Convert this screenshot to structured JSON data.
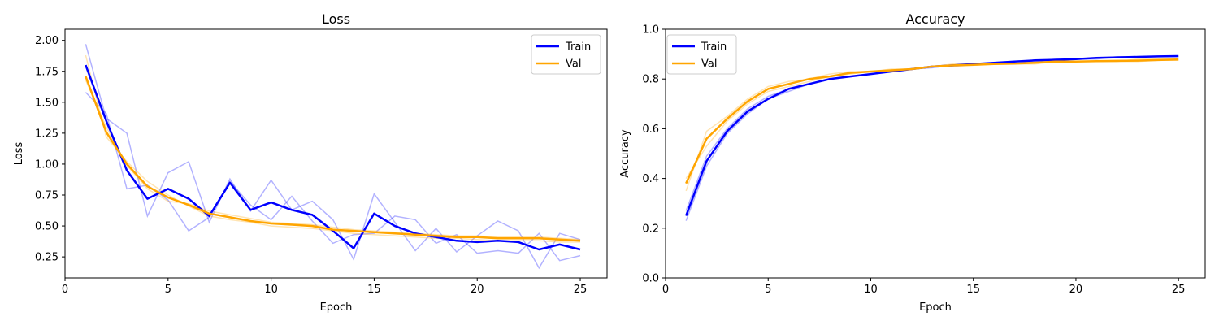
{
  "chart_data": [
    {
      "type": "line",
      "title": "Loss",
      "xlabel": "Epoch",
      "ylabel": "Loss",
      "xlim": [
        0,
        26.3
      ],
      "ylim": [
        0.08,
        2.09
      ],
      "xticks": [
        0,
        5,
        10,
        15,
        20,
        25
      ],
      "yticks": [
        0.25,
        0.5,
        0.75,
        1.0,
        1.25,
        1.5,
        1.75,
        2.0
      ],
      "ytick_decimals": 2,
      "legend": "top-right",
      "x": [
        1,
        2,
        3,
        4,
        5,
        6,
        7,
        8,
        9,
        10,
        11,
        12,
        13,
        14,
        15,
        16,
        17,
        18,
        19,
        20,
        21,
        22,
        23,
        24,
        25
      ],
      "series": [
        {
          "name": "Train",
          "color": "#0000ff",
          "values": [
            1.8,
            1.35,
            0.95,
            0.72,
            0.8,
            0.72,
            0.58,
            0.85,
            0.63,
            0.69,
            0.63,
            0.59,
            0.46,
            0.32,
            0.6,
            0.5,
            0.44,
            0.41,
            0.38,
            0.37,
            0.38,
            0.37,
            0.31,
            0.35,
            0.31
          ]
        },
        {
          "name": "Val",
          "color": "#ffa500",
          "values": [
            1.71,
            1.26,
            1.0,
            0.82,
            0.73,
            0.67,
            0.6,
            0.57,
            0.54,
            0.52,
            0.51,
            0.5,
            0.47,
            0.46,
            0.45,
            0.44,
            0.43,
            0.42,
            0.41,
            0.41,
            0.4,
            0.4,
            0.4,
            0.39,
            0.38
          ]
        }
      ],
      "faint_series": [
        {
          "color": "#0000ff",
          "values": [
            1.97,
            1.37,
            1.25,
            0.58,
            0.93,
            1.02,
            0.53,
            0.88,
            0.62,
            0.87,
            0.63,
            0.7,
            0.55,
            0.23,
            0.76,
            0.53,
            0.3,
            0.48,
            0.29,
            0.42,
            0.54,
            0.46,
            0.16,
            0.44,
            0.39
          ]
        },
        {
          "color": "#0000ff",
          "values": [
            1.58,
            1.41,
            0.8,
            0.83,
            0.71,
            0.46,
            0.57,
            0.86,
            0.67,
            0.55,
            0.74,
            0.54,
            0.36,
            0.43,
            0.44,
            0.58,
            0.55,
            0.36,
            0.43,
            0.28,
            0.3,
            0.28,
            0.44,
            0.22,
            0.26
          ]
        },
        {
          "color": "#ffa500",
          "values": [
            1.88,
            1.22,
            1.02,
            0.86,
            0.75,
            0.66,
            0.58,
            0.55,
            0.53,
            0.5,
            0.49,
            0.48,
            0.46,
            0.44,
            0.43,
            0.42,
            0.41,
            0.4,
            0.4,
            0.39,
            0.38,
            0.38,
            0.38,
            0.37,
            0.37
          ]
        },
        {
          "color": "#ffa500",
          "values": [
            1.68,
            1.3,
            0.99,
            0.8,
            0.7,
            0.68,
            0.62,
            0.59,
            0.56,
            0.53,
            0.52,
            0.51,
            0.49,
            0.47,
            0.46,
            0.45,
            0.44,
            0.43,
            0.42,
            0.42,
            0.41,
            0.41,
            0.41,
            0.4,
            0.39
          ]
        }
      ]
    },
    {
      "type": "line",
      "title": "Accuracy",
      "xlabel": "Epoch",
      "ylabel": "Accuracy",
      "xlim": [
        0,
        26.3
      ],
      "ylim": [
        0.0,
        1.0
      ],
      "xticks": [
        0,
        5,
        10,
        15,
        20,
        25
      ],
      "yticks": [
        0.0,
        0.2,
        0.4,
        0.6,
        0.8,
        1.0
      ],
      "ytick_decimals": 1,
      "legend": "top-left",
      "x": [
        1,
        2,
        3,
        4,
        5,
        6,
        7,
        8,
        9,
        10,
        11,
        12,
        13,
        14,
        15,
        16,
        17,
        18,
        19,
        20,
        21,
        22,
        23,
        24,
        25
      ],
      "series": [
        {
          "name": "Train",
          "color": "#0000ff",
          "values": [
            0.25,
            0.47,
            0.59,
            0.67,
            0.72,
            0.76,
            0.78,
            0.8,
            0.81,
            0.82,
            0.83,
            0.84,
            0.85,
            0.855,
            0.86,
            0.865,
            0.87,
            0.875,
            0.877,
            0.88,
            0.885,
            0.887,
            0.889,
            0.891,
            0.892
          ]
        },
        {
          "name": "Val",
          "color": "#ffa500",
          "values": [
            0.38,
            0.56,
            0.64,
            0.71,
            0.76,
            0.78,
            0.8,
            0.81,
            0.825,
            0.83,
            0.835,
            0.84,
            0.85,
            0.855,
            0.857,
            0.86,
            0.862,
            0.865,
            0.87,
            0.87,
            0.872,
            0.873,
            0.874,
            0.876,
            0.878
          ]
        }
      ],
      "faint_series": [
        {
          "color": "#0000ff",
          "values": [
            0.23,
            0.45,
            0.58,
            0.66,
            0.72,
            0.75,
            0.78,
            0.8,
            0.81,
            0.82,
            0.83,
            0.84,
            0.85,
            0.85,
            0.86,
            0.86,
            0.87,
            0.87,
            0.88,
            0.88,
            0.88,
            0.89,
            0.89,
            0.89,
            0.89
          ]
        },
        {
          "color": "#0000ff",
          "values": [
            0.27,
            0.49,
            0.6,
            0.68,
            0.73,
            0.76,
            0.78,
            0.8,
            0.81,
            0.82,
            0.83,
            0.84,
            0.845,
            0.855,
            0.86,
            0.865,
            0.87,
            0.875,
            0.875,
            0.88,
            0.885,
            0.885,
            0.888,
            0.89,
            0.892
          ]
        },
        {
          "color": "#ffa500",
          "values": [
            0.35,
            0.59,
            0.65,
            0.72,
            0.77,
            0.79,
            0.8,
            0.82,
            0.83,
            0.83,
            0.84,
            0.84,
            0.85,
            0.86,
            0.86,
            0.86,
            0.87,
            0.87,
            0.87,
            0.87,
            0.87,
            0.87,
            0.88,
            0.88,
            0.88
          ]
        },
        {
          "color": "#ffa500",
          "values": [
            0.4,
            0.53,
            0.63,
            0.7,
            0.75,
            0.77,
            0.79,
            0.81,
            0.82,
            0.83,
            0.83,
            0.84,
            0.85,
            0.85,
            0.855,
            0.86,
            0.86,
            0.86,
            0.87,
            0.87,
            0.87,
            0.87,
            0.87,
            0.875,
            0.875
          ]
        }
      ]
    }
  ]
}
